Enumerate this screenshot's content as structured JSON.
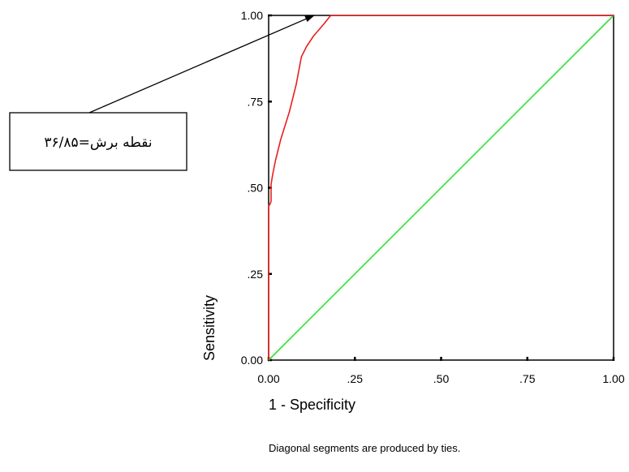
{
  "chart_data": {
    "type": "line",
    "title": "",
    "xlabel": "1 - Specificity",
    "ylabel": "Sensitivity",
    "xlim": [
      0,
      1
    ],
    "ylim": [
      0,
      1
    ],
    "x_ticks": [
      "0.00",
      ".25",
      ".50",
      ".75",
      "1.00"
    ],
    "y_ticks": [
      "0.00",
      ".25",
      ".50",
      ".75",
      "1.00"
    ],
    "x_tick_values": [
      0,
      0.25,
      0.5,
      0.75,
      1
    ],
    "y_tick_values": [
      0,
      0.25,
      0.5,
      0.75,
      1
    ],
    "grid": false,
    "legend": "none",
    "series": [
      {
        "color": "#e8201e",
        "x": [
          0,
          0,
          0.003,
          0.007,
          0.007,
          0.012,
          0.02,
          0.035,
          0.06,
          0.08,
          0.095,
          0.11,
          0.13,
          0.16,
          0.18,
          0.5,
          1
        ],
        "y": [
          0,
          0.45,
          0.45,
          0.46,
          0.51,
          0.54,
          0.58,
          0.64,
          0.72,
          0.8,
          0.88,
          0.91,
          0.94,
          0.975,
          1,
          1,
          1
        ]
      },
      {
        "color": "#33e033",
        "x": [
          0,
          1
        ],
        "y": [
          0,
          1
        ]
      }
    ],
    "annotation": {
      "text": "نقطه برش=۳۶/۸۵",
      "target": {
        "x": 0.13,
        "y": 1
      }
    },
    "footnote": "Diagonal segments are produced by ties."
  }
}
